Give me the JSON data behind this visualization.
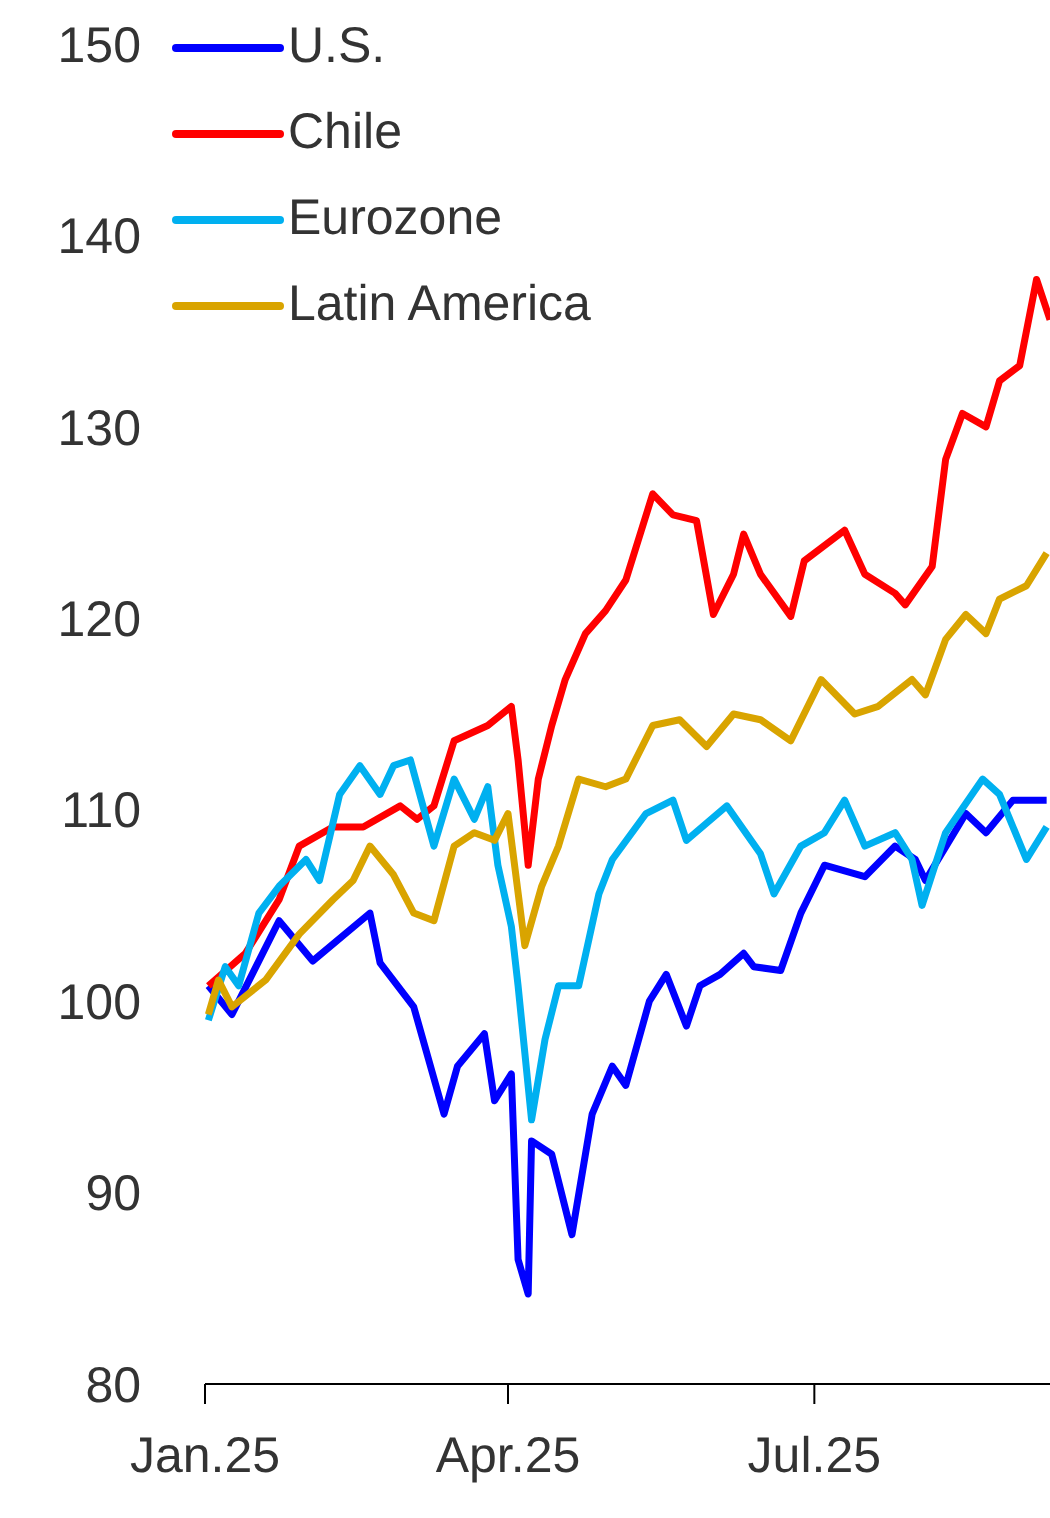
{
  "chart_data": {
    "type": "line",
    "xlim": [
      "2025-01-01",
      "2025-09-09"
    ],
    "xticks": [
      {
        "value": "2025-01-01",
        "label": "Jan.25"
      },
      {
        "value": "2025-04-01",
        "label": "Apr.25"
      },
      {
        "value": "2025-07-01",
        "label": "Jul.25"
      }
    ],
    "ylim": [
      80,
      150
    ],
    "yticks": [
      80,
      90,
      100,
      110,
      120,
      130,
      140,
      150
    ],
    "legend": "top left",
    "series": [
      {
        "name": "U.S.",
        "color": "#0000ff",
        "x": [
          "2025-01-02",
          "2025-01-09",
          "2025-01-23",
          "2025-02-02",
          "2025-02-19",
          "2025-02-22",
          "2025-03-04",
          "2025-03-13",
          "2025-03-17",
          "2025-03-25",
          "2025-03-28",
          "2025-04-02",
          "2025-04-04",
          "2025-04-07",
          "2025-04-08",
          "2025-04-14",
          "2025-04-20",
          "2025-04-26",
          "2025-05-02",
          "2025-05-06",
          "2025-05-13",
          "2025-05-18",
          "2025-05-24",
          "2025-05-28",
          "2025-06-03",
          "2025-06-10",
          "2025-06-13",
          "2025-06-21",
          "2025-06-27",
          "2025-07-04",
          "2025-07-16",
          "2025-07-25",
          "2025-07-31",
          "2025-08-03",
          "2025-08-15",
          "2025-08-21",
          "2025-08-29",
          "2025-09-08"
        ],
        "values": [
          100.8,
          99.3,
          104.2,
          102.1,
          104.6,
          102,
          99.7,
          94.1,
          96.6,
          98.3,
          94.8,
          96.2,
          86.5,
          84.7,
          92.7,
          92,
          87.8,
          94.1,
          96.6,
          95.6,
          100,
          101.4,
          98.7,
          100.8,
          101.4,
          102.5,
          101.8,
          101.6,
          104.6,
          107.1,
          106.5,
          108.1,
          107.4,
          106.3,
          109.8,
          108.8,
          110.5,
          110.5
        ]
      },
      {
        "name": "Chile",
        "color": "#ff0000",
        "x": [
          "2025-01-02",
          "2025-01-13",
          "2025-01-23",
          "2025-01-29",
          "2025-02-08",
          "2025-02-17",
          "2025-02-28",
          "2025-03-05",
          "2025-03-10",
          "2025-03-16",
          "2025-03-26",
          "2025-04-02",
          "2025-04-04",
          "2025-04-07",
          "2025-04-10",
          "2025-04-14",
          "2025-04-18",
          "2025-04-24",
          "2025-04-30",
          "2025-05-06",
          "2025-05-14",
          "2025-05-20",
          "2025-05-27",
          "2025-06-01",
          "2025-06-07",
          "2025-06-10",
          "2025-06-15",
          "2025-06-24",
          "2025-06-28",
          "2025-07-10",
          "2025-07-16",
          "2025-07-25",
          "2025-07-28",
          "2025-08-05",
          "2025-08-09",
          "2025-08-14",
          "2025-08-21",
          "2025-08-25",
          "2025-08-31",
          "2025-09-05",
          "2025-09-09"
        ],
        "values": [
          100.8,
          102.5,
          105.3,
          108.1,
          109.1,
          109.1,
          110.2,
          109.5,
          110.2,
          113.6,
          114.4,
          115.4,
          112.6,
          107.1,
          111.6,
          114.4,
          116.8,
          119.2,
          120.4,
          122,
          126.5,
          125.4,
          125.1,
          120.2,
          122.3,
          124.4,
          122.3,
          120.1,
          123,
          124.6,
          122.3,
          121.3,
          120.7,
          122.7,
          128.3,
          130.7,
          130,
          132.4,
          133.2,
          137.7,
          135.6
        ]
      },
      {
        "name": "Eurozone",
        "color": "#00b0f0",
        "x": [
          "2025-01-02",
          "2025-01-07",
          "2025-01-11",
          "2025-01-17",
          "2025-01-23",
          "2025-01-31",
          "2025-02-04",
          "2025-02-10",
          "2025-02-16",
          "2025-02-22",
          "2025-02-26",
          "2025-03-03",
          "2025-03-10",
          "2025-03-16",
          "2025-03-22",
          "2025-03-26",
          "2025-03-29",
          "2025-04-02",
          "2025-04-04",
          "2025-04-08",
          "2025-04-12",
          "2025-04-16",
          "2025-04-22",
          "2025-04-28",
          "2025-05-02",
          "2025-05-12",
          "2025-05-20",
          "2025-05-24",
          "2025-06-05",
          "2025-06-15",
          "2025-06-19",
          "2025-06-27",
          "2025-07-04",
          "2025-07-10",
          "2025-07-16",
          "2025-07-25",
          "2025-07-30",
          "2025-08-02",
          "2025-08-09",
          "2025-08-20",
          "2025-08-25",
          "2025-09-02",
          "2025-09-08"
        ],
        "values": [
          99,
          101.8,
          100.8,
          104.6,
          106,
          107.4,
          106.3,
          110.8,
          112.3,
          110.8,
          112.3,
          112.6,
          108.1,
          111.6,
          109.5,
          111.2,
          107.1,
          103.9,
          100.8,
          93.8,
          98,
          100.8,
          100.8,
          105.6,
          107.4,
          109.8,
          110.5,
          108.4,
          110.2,
          107.7,
          105.6,
          108.1,
          108.8,
          110.5,
          108.1,
          108.8,
          107.4,
          105,
          108.8,
          111.6,
          110.8,
          107.4,
          109.1
        ]
      },
      {
        "name": "Latin America",
        "color": "#d9a400",
        "x": [
          "2025-01-02",
          "2025-01-05",
          "2025-01-09",
          "2025-01-19",
          "2025-01-29",
          "2025-02-08",
          "2025-02-14",
          "2025-02-19",
          "2025-02-26",
          "2025-03-04",
          "2025-03-10",
          "2025-03-16",
          "2025-03-22",
          "2025-03-28",
          "2025-04-01",
          "2025-04-06",
          "2025-04-11",
          "2025-04-16",
          "2025-04-22",
          "2025-04-30",
          "2025-05-06",
          "2025-05-14",
          "2025-05-22",
          "2025-05-30",
          "2025-06-07",
          "2025-06-15",
          "2025-06-24",
          "2025-07-03",
          "2025-07-13",
          "2025-07-20",
          "2025-07-30",
          "2025-08-03",
          "2025-08-09",
          "2025-08-15",
          "2025-08-21",
          "2025-08-25",
          "2025-09-02",
          "2025-09-08"
        ],
        "values": [
          99.3,
          101.1,
          99.7,
          101.1,
          103.5,
          105.3,
          106.3,
          108.1,
          106.6,
          104.6,
          104.2,
          108.1,
          108.8,
          108.4,
          109.8,
          102.9,
          106,
          108.1,
          111.6,
          111.2,
          111.6,
          114.4,
          114.7,
          113.3,
          115,
          114.7,
          113.6,
          116.8,
          115,
          115.4,
          116.8,
          116,
          118.9,
          120.2,
          119.2,
          121,
          121.7,
          123.4
        ]
      }
    ]
  }
}
